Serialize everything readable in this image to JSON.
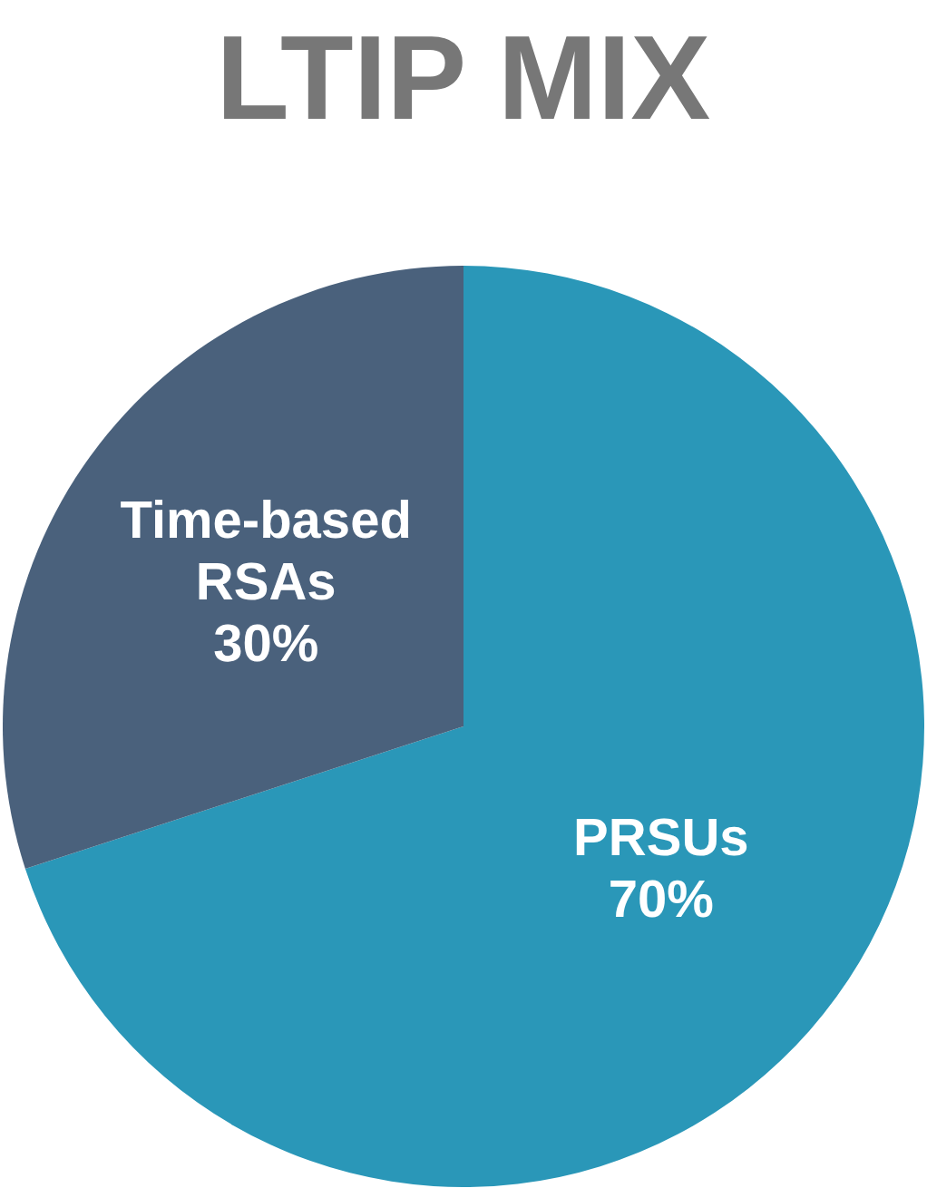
{
  "chart_data": {
    "type": "pie",
    "title": "LTIP MIX",
    "categories": [
      "PRSUs",
      "Time-based RSAs"
    ],
    "values": [
      70,
      30
    ],
    "colors": [
      "#2a97b8",
      "#4a617c"
    ],
    "value_labels": [
      "70%",
      "30%"
    ]
  }
}
